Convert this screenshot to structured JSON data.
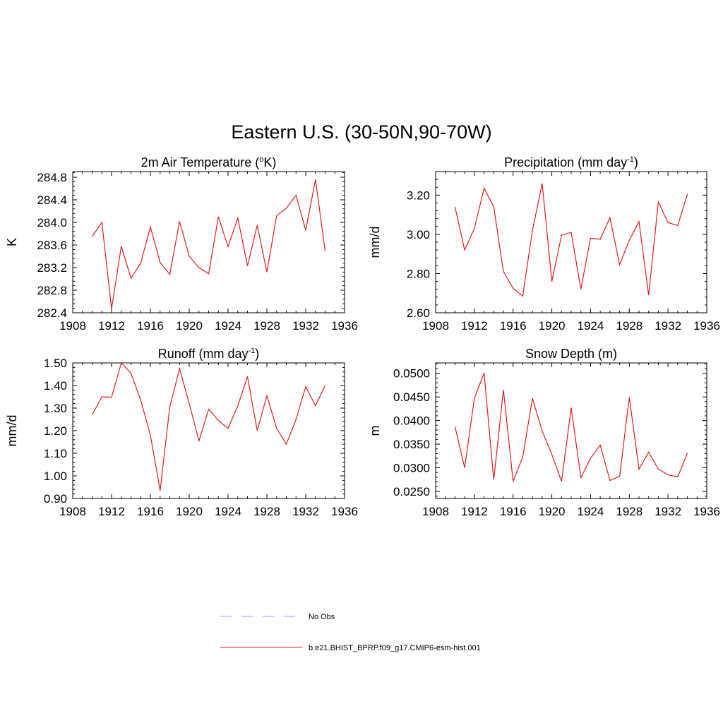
{
  "figure": {
    "title": "Eastern U.S. (30-50N,90-70W)"
  },
  "colors": {
    "model_line": "#e41a1c",
    "obs_line": "#9999ff",
    "axis": "#000000"
  },
  "legend": {
    "entries": [
      {
        "label": "No Obs",
        "style": "dashed",
        "color": "#9999ff"
      },
      {
        "label": "b.e21.BHIST_BPRP.f09_g17.CMIP6-esm-hist.001",
        "style": "solid",
        "color": "#e41a1c"
      }
    ]
  },
  "chart_data": [
    {
      "type": "line",
      "title_main": "2m Air Temperature (",
      "title_sup": "o",
      "title_end": "K)",
      "ylabel": "K",
      "xlabel": "",
      "xlim": [
        1908,
        1936
      ],
      "xticks": [
        "1908",
        "1912",
        "1916",
        "1920",
        "1924",
        "1928",
        "1932",
        "1936"
      ],
      "ylim": [
        282.4,
        284.9
      ],
      "yticks": [
        "282.4",
        "282.8",
        "283.2",
        "283.6",
        "284.0",
        "284.4",
        "284.8"
      ],
      "ytick_values": [
        282.4,
        282.8,
        283.2,
        283.6,
        284.0,
        284.4,
        284.8
      ],
      "series": [
        {
          "x": [
            1910,
            1911,
            1912,
            1913,
            1914,
            1915,
            1916,
            1917,
            1918,
            1919,
            1920,
            1921,
            1922,
            1923,
            1924,
            1925,
            1926,
            1927,
            1928,
            1929,
            1930,
            1931,
            1932,
            1933,
            1934
          ],
          "values": [
            283.75,
            284.0,
            282.47,
            283.58,
            283.01,
            283.28,
            283.92,
            283.29,
            283.08,
            284.02,
            283.4,
            283.2,
            283.09,
            284.1,
            283.57,
            284.08,
            283.23,
            283.95,
            283.12,
            284.12,
            284.25,
            284.48,
            283.86,
            284.76,
            283.49
          ]
        }
      ]
    },
    {
      "type": "line",
      "title_main": "Precipitation (mm day",
      "title_sup": "-1",
      "title_end": ")",
      "ylabel": "mm/d",
      "xlabel": "",
      "xlim": [
        1908,
        1936
      ],
      "xticks": [
        "1908",
        "1912",
        "1916",
        "1920",
        "1924",
        "1928",
        "1932",
        "1936"
      ],
      "ylim": [
        2.6,
        3.32
      ],
      "yticks": [
        "2.60",
        "2.80",
        "3.00",
        "3.20"
      ],
      "ytick_values": [
        2.6,
        2.8,
        3.0,
        3.2
      ],
      "series": [
        {
          "x": [
            1910,
            1911,
            1912,
            1913,
            1914,
            1915,
            1916,
            1917,
            1918,
            1919,
            1920,
            1921,
            1922,
            1923,
            1924,
            1925,
            1926,
            1927,
            1928,
            1929,
            1930,
            1931,
            1932,
            1933,
            1934
          ],
          "values": [
            3.14,
            2.92,
            3.03,
            3.235,
            3.14,
            2.81,
            2.725,
            2.685,
            3.02,
            3.26,
            2.76,
            2.995,
            3.01,
            2.72,
            2.98,
            2.975,
            3.085,
            2.845,
            2.97,
            3.065,
            2.69,
            3.165,
            3.06,
            3.045,
            3.205
          ]
        }
      ]
    },
    {
      "type": "line",
      "title_main": "Runoff (mm day",
      "title_sup": "-1",
      "title_end": ")",
      "ylabel": "mm/d",
      "xlabel": "",
      "xlim": [
        1908,
        1936
      ],
      "xticks": [
        "1908",
        "1912",
        "1916",
        "1920",
        "1924",
        "1928",
        "1932",
        "1936"
      ],
      "ylim": [
        0.9,
        1.5
      ],
      "yticks": [
        "0.90",
        "1.00",
        "1.10",
        "1.20",
        "1.30",
        "1.40",
        "1.50"
      ],
      "ytick_values": [
        0.9,
        1.0,
        1.1,
        1.2,
        1.3,
        1.4,
        1.5
      ],
      "series": [
        {
          "x": [
            1910,
            1911,
            1912,
            1913,
            1914,
            1915,
            1916,
            1917,
            1918,
            1919,
            1920,
            1921,
            1922,
            1923,
            1924,
            1925,
            1926,
            1927,
            1928,
            1929,
            1930,
            1931,
            1932,
            1933,
            1934
          ],
          "values": [
            1.27,
            1.35,
            1.348,
            1.5,
            1.455,
            1.335,
            1.18,
            0.935,
            1.305,
            1.475,
            1.32,
            1.155,
            1.295,
            1.245,
            1.21,
            1.31,
            1.44,
            1.2,
            1.355,
            1.21,
            1.14,
            1.25,
            1.395,
            1.31,
            1.4
          ]
        }
      ]
    },
    {
      "type": "line",
      "title_main": "Snow Depth (m)",
      "title_sup": "",
      "title_end": "",
      "ylabel": "m",
      "xlabel": "",
      "xlim": [
        1908,
        1936
      ],
      "xticks": [
        "1908",
        "1912",
        "1916",
        "1920",
        "1924",
        "1928",
        "1932",
        "1936"
      ],
      "ylim": [
        0.0235,
        0.0522
      ],
      "yticks": [
        "0.0250",
        "0.0300",
        "0.0350",
        "0.0400",
        "0.0450",
        "0.0500"
      ],
      "ytick_values": [
        0.025,
        0.03,
        0.035,
        0.04,
        0.045,
        0.05
      ],
      "series": [
        {
          "x": [
            1910,
            1911,
            1912,
            1913,
            1914,
            1915,
            1916,
            1917,
            1918,
            1919,
            1920,
            1921,
            1922,
            1923,
            1924,
            1925,
            1926,
            1927,
            1928,
            1929,
            1930,
            1931,
            1932,
            1933,
            1934
          ],
          "values": [
            0.0387,
            0.03,
            0.0447,
            0.0501,
            0.0275,
            0.0465,
            0.0271,
            0.0323,
            0.0447,
            0.0378,
            0.0328,
            0.0271,
            0.0427,
            0.0279,
            0.032,
            0.0348,
            0.0273,
            0.0282,
            0.0449,
            0.0297,
            0.0333,
            0.0297,
            0.0285,
            0.0281,
            0.0331
          ]
        }
      ]
    }
  ]
}
